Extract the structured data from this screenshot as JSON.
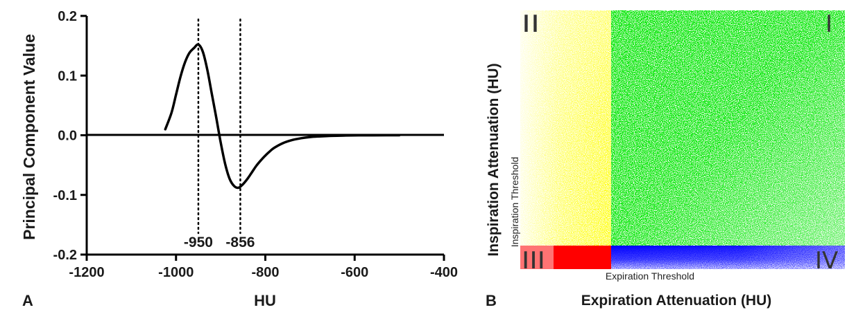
{
  "panel_a": {
    "letter": "A",
    "chart_data": {
      "type": "line",
      "xlabel": "HU",
      "ylabel": "Principal Component Value",
      "xlim": [
        -1200,
        -400
      ],
      "ylim": [
        -0.2,
        0.2
      ],
      "xticks": [
        -1200,
        -1000,
        -800,
        -600,
        -400
      ],
      "xtick_labels": [
        "-1200",
        "-1000",
        "-800",
        "-600",
        "-400"
      ],
      "yticks": [
        0.2,
        0.1,
        0.0,
        -0.1,
        -0.2
      ],
      "ytick_labels": [
        "0.2",
        "0.1",
        "0.0",
        "-0.1",
        "-0.2"
      ],
      "series": [
        {
          "x": [
            -1024,
            -1010,
            -1000,
            -990,
            -980,
            -970,
            -960,
            -950,
            -940,
            -930,
            -920,
            -910,
            -900,
            -890,
            -880,
            -870,
            -860,
            -850,
            -840,
            -830,
            -820,
            -810,
            -800,
            -790,
            -780,
            -760,
            -740,
            -720,
            -700,
            -680,
            -650,
            -620,
            -590,
            -560,
            -530,
            -500
          ],
          "y": [
            0.01,
            0.038,
            0.068,
            0.098,
            0.122,
            0.138,
            0.146,
            0.152,
            0.14,
            0.11,
            0.07,
            0.03,
            -0.012,
            -0.048,
            -0.073,
            -0.085,
            -0.088,
            -0.082,
            -0.073,
            -0.062,
            -0.051,
            -0.042,
            -0.034,
            -0.027,
            -0.021,
            -0.013,
            -0.008,
            -0.005,
            -0.003,
            -0.002,
            -0.001,
            -0.0005,
            -0.0002,
            -0.0001,
            0.0,
            0.0
          ]
        }
      ],
      "annotations": [
        {
          "x": -950,
          "label": "-950"
        },
        {
          "x": -856,
          "label": "-856"
        }
      ]
    }
  },
  "panel_b": {
    "letter": "B",
    "chart_data": {
      "type": "scatter",
      "xlabel": "Expiration Attenuation (HU)",
      "ylabel": "Inspiration Attenuation (HU)",
      "x_threshold_label": "Expiration Threshold",
      "y_threshold_label": "Inspiration Threshold",
      "quadrants": [
        {
          "label": "I",
          "color": "#00e600"
        },
        {
          "label": "II",
          "color": "#ffff00"
        },
        {
          "label": "III",
          "color": "#ff0000"
        },
        {
          "label": "IV",
          "color": "#0000ff"
        }
      ]
    }
  }
}
